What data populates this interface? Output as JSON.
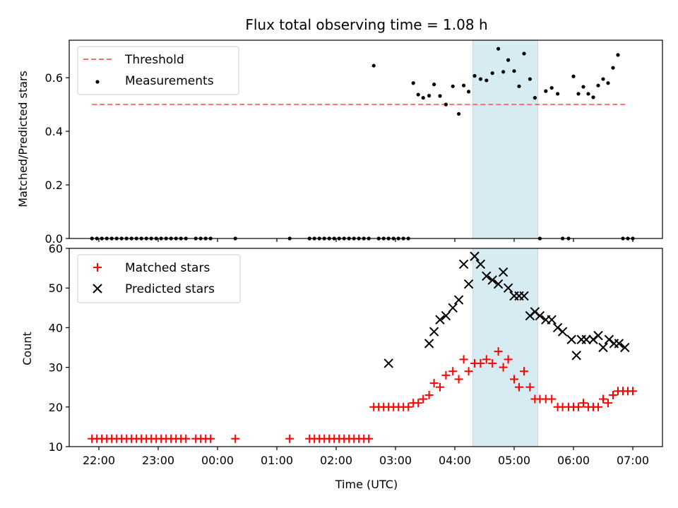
{
  "chart_data": [
    {
      "panel": "top",
      "type": "scatter",
      "title": "Flux total observing time = 1.08 h",
      "ylabel": "Matched/Predicted stars",
      "xlabel": "",
      "xlim": [
        "21:30",
        "07:30"
      ],
      "ylim": [
        0,
        0.74
      ],
      "yticks": [
        0.0,
        0.2,
        0.4,
        0.6
      ],
      "ytick_labels": [
        "0.0",
        "0.2",
        "0.4",
        "0.6"
      ],
      "grid": false,
      "legend_position": "top-left",
      "highlight_span": {
        "start": "04:18",
        "end": "05:24",
        "color": "#add8e6"
      },
      "series": [
        {
          "name": "Threshold",
          "kind": "dashed-line",
          "color": "#ff6f6f",
          "x": [
            "21:53",
            "06:55"
          ],
          "y": [
            0.5,
            0.5
          ]
        },
        {
          "name": "Measurements",
          "kind": "dots",
          "color": "#000000",
          "x": [
            "21:53",
            "21:58",
            "22:03",
            "22:08",
            "22:13",
            "22:18",
            "22:23",
            "22:28",
            "22:33",
            "22:38",
            "22:43",
            "22:48",
            "22:53",
            "22:58",
            "23:03",
            "23:08",
            "23:13",
            "23:18",
            "23:23",
            "23:28",
            "23:38",
            "23:43",
            "23:48",
            "23:53",
            "24:18",
            "25:13",
            "25:33",
            "25:38",
            "25:43",
            "25:48",
            "25:53",
            "25:58",
            "26:03",
            "26:08",
            "26:13",
            "26:18",
            "26:23",
            "26:28",
            "26:33",
            "26:38",
            "26:43",
            "26:48",
            "26:53",
            "26:58",
            "27:03",
            "27:08",
            "27:13",
            "27:18",
            "27:23",
            "27:28",
            "27:34",
            "27:39",
            "27:45",
            "27:51",
            "27:58",
            "28:04",
            "28:09",
            "28:14",
            "28:20",
            "28:26",
            "28:32",
            "28:38",
            "28:44",
            "28:49",
            "28:54",
            "29:00",
            "29:05",
            "29:10",
            "29:16",
            "29:21",
            "29:26",
            "29:32",
            "29:38",
            "29:44",
            "29:49",
            "29:55",
            "30:00",
            "30:05",
            "30:10",
            "30:15",
            "30:20",
            "30:25",
            "30:30",
            "30:35",
            "30:40",
            "30:45",
            "30:50",
            "30:55",
            "31:00"
          ],
          "y": [
            0,
            0,
            0,
            0,
            0,
            0,
            0,
            0,
            0,
            0,
            0,
            0,
            0,
            0,
            0,
            0,
            0,
            0,
            0,
            0,
            0,
            0,
            0,
            0,
            0,
            0,
            0,
            0,
            0,
            0,
            0,
            0,
            0,
            0,
            0,
            0,
            0,
            0,
            0,
            0.645,
            0,
            0,
            0,
            0,
            0,
            0,
            0,
            0.58,
            0.537,
            0.525,
            0.533,
            0.575,
            0.532,
            0.5,
            0.568,
            0.465,
            0.571,
            0.548,
            0.607,
            0.595,
            0.59,
            0.617,
            0.708,
            0.622,
            0.666,
            0.625,
            0.568,
            0.69,
            0.595,
            0.525,
            0,
            0.55,
            0.562,
            0.54,
            0,
            0,
            0.605,
            0.54,
            0.566,
            0.54,
            0.527,
            0.571,
            0.595,
            0.58,
            0.637,
            0.685,
            0,
            0,
            0
          ]
        }
      ]
    },
    {
      "panel": "bottom",
      "type": "scatter",
      "title": "",
      "ylabel": "Count",
      "xlabel": "Time (UTC)",
      "xlim": [
        "21:30",
        "07:30"
      ],
      "ylim": [
        10,
        60
      ],
      "yticks": [
        10,
        20,
        30,
        40,
        50,
        60
      ],
      "ytick_labels": [
        "10",
        "20",
        "30",
        "40",
        "50",
        "60"
      ],
      "xticks": [
        "22:00",
        "23:00",
        "00:00",
        "01:00",
        "02:00",
        "03:00",
        "04:00",
        "05:00",
        "06:00",
        "07:00"
      ],
      "grid": false,
      "legend_position": "top-left",
      "highlight_span": {
        "start": "04:18",
        "end": "05:24",
        "color": "#add8e6"
      },
      "series": [
        {
          "name": "Matched stars",
          "kind": "plus",
          "color": "#ff0000",
          "x": [
            "21:53",
            "21:58",
            "22:03",
            "22:08",
            "22:13",
            "22:18",
            "22:23",
            "22:28",
            "22:33",
            "22:38",
            "22:43",
            "22:48",
            "22:53",
            "22:58",
            "23:03",
            "23:08",
            "23:13",
            "23:18",
            "23:23",
            "23:28",
            "23:38",
            "23:43",
            "23:48",
            "23:53",
            "24:18",
            "25:13",
            "25:33",
            "25:38",
            "25:43",
            "25:48",
            "25:53",
            "25:58",
            "26:03",
            "26:08",
            "26:13",
            "26:18",
            "26:23",
            "26:28",
            "26:33",
            "26:38",
            "26:43",
            "26:48",
            "26:53",
            "26:58",
            "27:03",
            "27:08",
            "27:13",
            "27:18",
            "27:23",
            "27:28",
            "27:34",
            "27:39",
            "27:45",
            "27:51",
            "27:58",
            "28:04",
            "28:09",
            "28:14",
            "28:20",
            "28:26",
            "28:32",
            "28:38",
            "28:44",
            "28:49",
            "28:54",
            "29:00",
            "29:05",
            "29:10",
            "29:16",
            "29:21",
            "29:26",
            "29:32",
            "29:38",
            "29:44",
            "29:49",
            "29:55",
            "30:00",
            "30:05",
            "30:10",
            "30:15",
            "30:20",
            "30:25",
            "30:30",
            "30:35",
            "30:40",
            "30:45",
            "30:50",
            "30:55",
            "31:00"
          ],
          "y": [
            12,
            12,
            12,
            12,
            12,
            12,
            12,
            12,
            12,
            12,
            12,
            12,
            12,
            12,
            12,
            12,
            12,
            12,
            12,
            12,
            12,
            12,
            12,
            12,
            12,
            12,
            12,
            12,
            12,
            12,
            12,
            12,
            12,
            12,
            12,
            12,
            12,
            12,
            12,
            20,
            20,
            20,
            20,
            20,
            20,
            20,
            20,
            21,
            21,
            22,
            23,
            26,
            25,
            28,
            29,
            27,
            32,
            29,
            31,
            31,
            32,
            31,
            34,
            30,
            32,
            27,
            25,
            29,
            25,
            22,
            22,
            22,
            22,
            20,
            20,
            20,
            20,
            20,
            21,
            20,
            20,
            20,
            22,
            21,
            23,
            24,
            24,
            24,
            24
          ]
        },
        {
          "name": "Predicted stars",
          "kind": "cross",
          "color": "#000000",
          "x": [
            "26:53",
            "27:34",
            "27:39",
            "27:45",
            "27:51",
            "27:58",
            "28:04",
            "28:09",
            "28:14",
            "28:20",
            "28:26",
            "28:32",
            "28:38",
            "28:44",
            "28:49",
            "28:54",
            "29:00",
            "29:05",
            "29:10",
            "29:16",
            "29:21",
            "29:26",
            "29:32",
            "29:38",
            "29:44",
            "29:49",
            "29:58",
            "30:03",
            "30:08",
            "30:13",
            "30:20",
            "30:25",
            "30:30",
            "30:36",
            "30:41",
            "30:46",
            "30:52"
          ],
          "y": [
            31,
            36,
            39,
            42,
            43,
            45,
            47,
            56,
            51,
            58,
            56,
            53,
            52,
            51,
            54,
            50,
            48,
            48,
            48,
            43,
            44,
            43,
            42,
            42,
            40,
            39,
            37,
            33,
            37,
            37,
            37,
            38,
            35,
            37,
            36,
            36,
            35
          ]
        }
      ]
    }
  ]
}
